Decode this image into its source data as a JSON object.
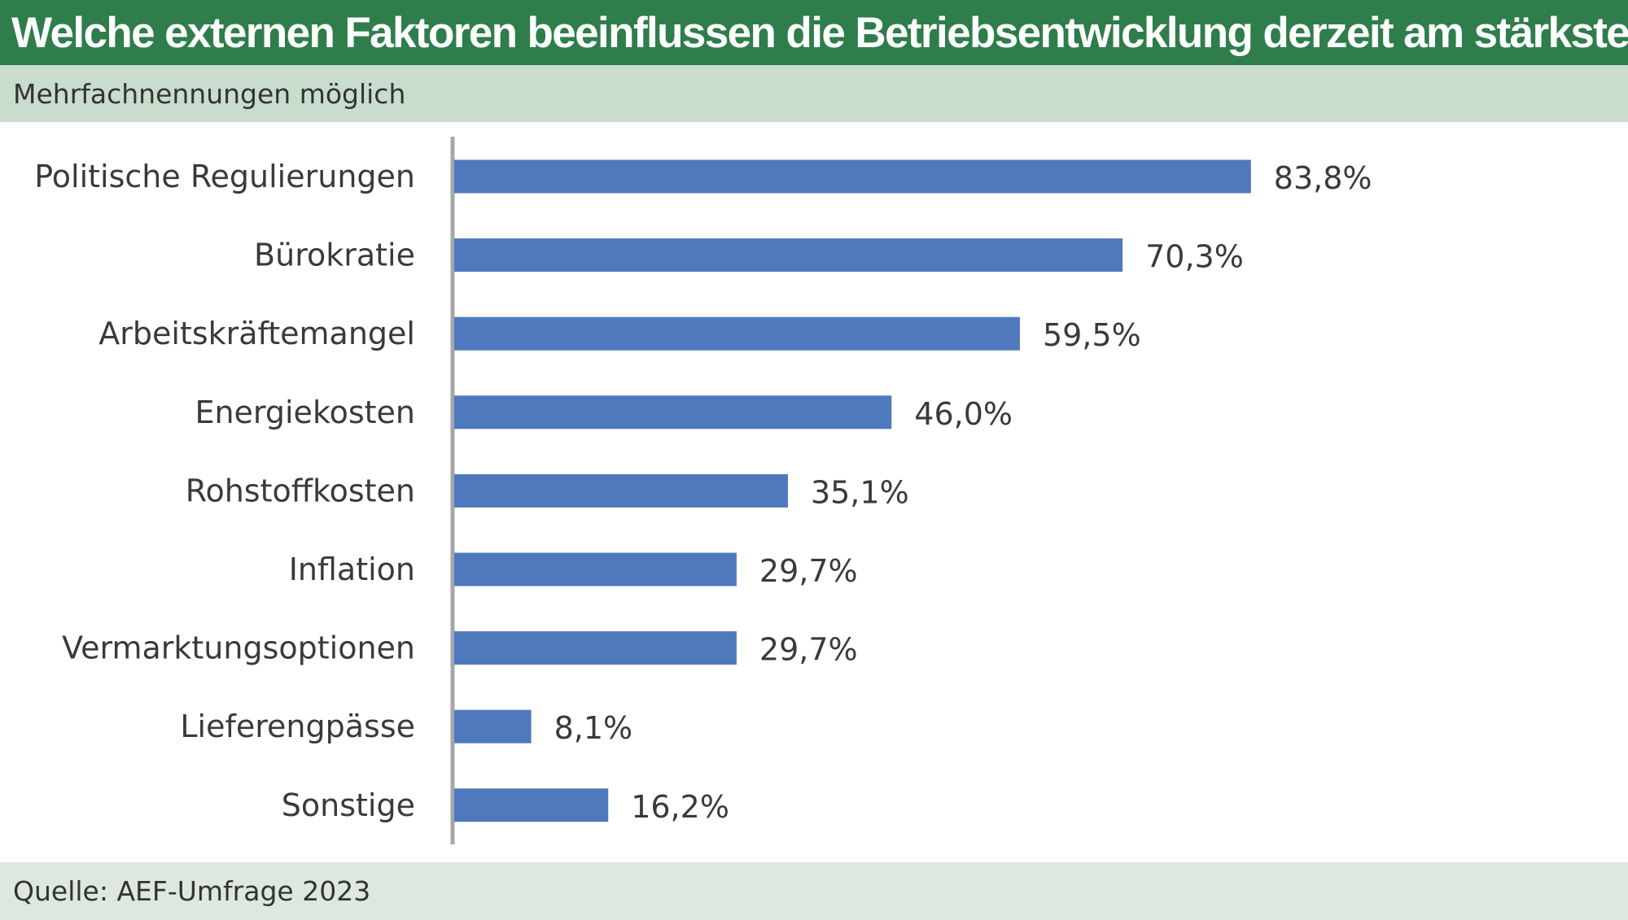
{
  "header": {
    "title": "Welche externen Faktoren beeinflussen die Betriebsentwicklung derzeit am stärksten?",
    "subtitle": "Mehrfachnennungen möglich"
  },
  "footer": {
    "source": "Quelle: AEF-Umfrage 2023"
  },
  "colors": {
    "title_bar": "#2e7d4b",
    "subtitle_bar": "#c8ddcd",
    "footer_bar": "#dde8e0",
    "bar": "#4f79bd",
    "axis": "#a6a6a6"
  },
  "chart_data": {
    "type": "bar",
    "orientation": "horizontal",
    "categories": [
      "Politische Regulierungen",
      "Bürokratie",
      "Arbeitskräftemangel",
      "Energiekosten",
      "Rohstoffkosten",
      "Inflation",
      "Vermarktungsoptionen",
      "Lieferengpässe",
      "Sonstige"
    ],
    "values": [
      83.8,
      70.3,
      59.5,
      46.0,
      35.1,
      29.7,
      29.7,
      8.1,
      16.2
    ],
    "value_labels": [
      "83,8%",
      "70,3%",
      "59,5%",
      "46,0%",
      "35,1%",
      "29,7%",
      "29,7%",
      "8,1%",
      "16,2%"
    ],
    "xlim": [
      0,
      100
    ],
    "grid": false,
    "legend": "none"
  }
}
